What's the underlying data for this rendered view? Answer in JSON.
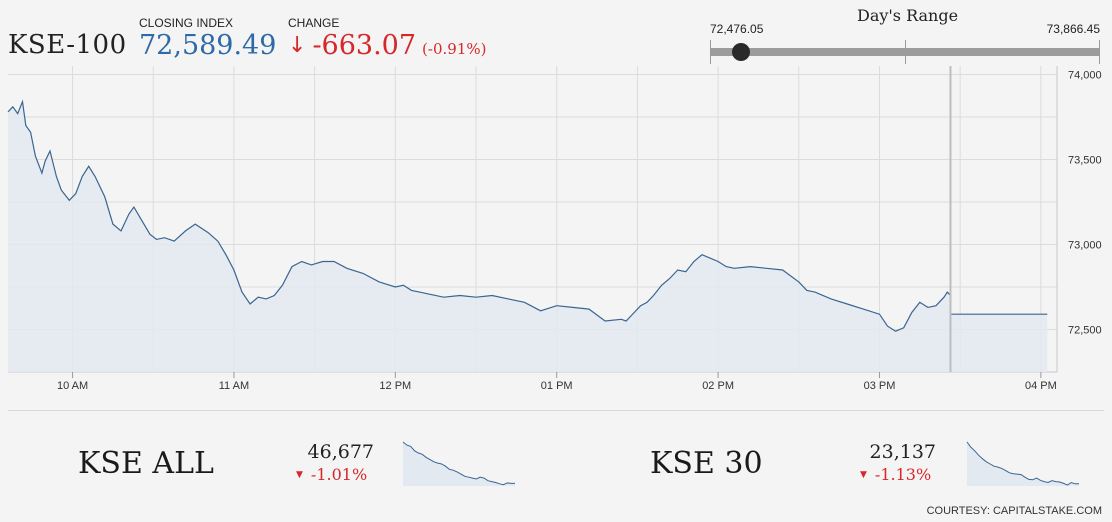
{
  "header": {
    "index_name": "KSE-100",
    "closing_label": "CLOSING INDEX",
    "closing_value": "72,589.49",
    "change_label": "CHANGE",
    "change_arrow": "↓",
    "change_value": "-663.07",
    "change_pct": "(-0.91%)"
  },
  "days_range": {
    "title": "Day's Range",
    "low": "72,476.05",
    "high": "73,866.45",
    "current_position": 0.08
  },
  "colors": {
    "accent_blue": "#2e6aa8",
    "negative_red": "#d6272b",
    "line": "#3a6591",
    "area_fill": "#e3e9f0"
  },
  "chart_data": {
    "type": "area",
    "ylim": [
      72250,
      74050
    ],
    "yticks": [
      72500,
      73000,
      73500,
      74000
    ],
    "ytick_labels": [
      "72,500",
      "73,000",
      "73,500",
      "74,000"
    ],
    "xlim": [
      9.6,
      16.1
    ],
    "xticks": [
      10,
      11,
      12,
      13,
      14,
      15,
      16
    ],
    "xtick_labels": [
      "10 AM",
      "11 AM",
      "12 PM",
      "01 PM",
      "02 PM",
      "03 PM",
      "04 PM"
    ],
    "grid": true,
    "series": [
      {
        "x": [
          9.6,
          9.63,
          9.66,
          9.69,
          9.71,
          9.74,
          9.77,
          9.81,
          9.83,
          9.86,
          9.9,
          9.93,
          9.98,
          10.02,
          10.06,
          10.1,
          10.14,
          10.2,
          10.25,
          10.3,
          10.35,
          10.38,
          10.43,
          10.48,
          10.52,
          10.57,
          10.63,
          10.7,
          10.76,
          10.84,
          10.9,
          10.95,
          11.0,
          11.05,
          11.1,
          11.15,
          11.2,
          11.25,
          11.3,
          11.36,
          11.42,
          11.48,
          11.55,
          11.62,
          11.7,
          11.8,
          11.9,
          12.0,
          12.05,
          12.1,
          12.15,
          12.2,
          12.3,
          12.4,
          12.5,
          12.6,
          12.7,
          12.8,
          12.9,
          13.0,
          13.1,
          13.2,
          13.3,
          13.4,
          13.43,
          13.48,
          13.52,
          13.56,
          13.6,
          13.65,
          13.7,
          13.75,
          13.8,
          13.85,
          13.9,
          13.95,
          14.0,
          14.05,
          14.1,
          14.2,
          14.3,
          14.4,
          14.5,
          14.55,
          14.6,
          14.7,
          14.8,
          14.9,
          15.0,
          15.05,
          15.1,
          15.15,
          15.2,
          15.25,
          15.3,
          15.35,
          15.4,
          15.42,
          15.44,
          15.44,
          15.5,
          15.6,
          15.7,
          15.8,
          15.9,
          16.0,
          16.04
        ],
        "y": [
          73780,
          73810,
          73770,
          73840,
          73700,
          73660,
          73520,
          73420,
          73490,
          73550,
          73400,
          73320,
          73260,
          73300,
          73400,
          73460,
          73400,
          73280,
          73120,
          73080,
          73180,
          73220,
          73140,
          73060,
          73030,
          73040,
          73020,
          73080,
          73120,
          73070,
          73020,
          72940,
          72850,
          72720,
          72650,
          72690,
          72680,
          72700,
          72760,
          72870,
          72900,
          72880,
          72900,
          72900,
          72860,
          72830,
          72780,
          72750,
          72760,
          72730,
          72720,
          72710,
          72690,
          72700,
          72690,
          72700,
          72680,
          72660,
          72610,
          72640,
          72630,
          72620,
          72550,
          72560,
          72550,
          72600,
          72640,
          72660,
          72700,
          72760,
          72800,
          72850,
          72840,
          72900,
          72940,
          72920,
          72900,
          72870,
          72860,
          72870,
          72860,
          72850,
          72780,
          72730,
          72720,
          72680,
          72650,
          72620,
          72590,
          72520,
          72490,
          72510,
          72600,
          72660,
          72630,
          72640,
          72690,
          72720,
          72700,
          72590,
          72590,
          72590,
          72590,
          72590,
          72590,
          72590,
          72590
        ]
      }
    ]
  },
  "tickers": [
    {
      "name": "KSE ALL",
      "value": "46,677",
      "change": "-1.01%",
      "spark": [
        1.0,
        0.93,
        0.9,
        0.8,
        0.75,
        0.72,
        0.65,
        0.6,
        0.55,
        0.52,
        0.5,
        0.45,
        0.38,
        0.36,
        0.32,
        0.27,
        0.22,
        0.2,
        0.18,
        0.16,
        0.2,
        0.18,
        0.12,
        0.1,
        0.08,
        0.05,
        0.03,
        0.07,
        0.06,
        0.06
      ]
    },
    {
      "name": "KSE 30",
      "value": "23,137",
      "change": "-1.13%",
      "spark": [
        1.0,
        0.88,
        0.8,
        0.7,
        0.62,
        0.55,
        0.5,
        0.45,
        0.43,
        0.4,
        0.35,
        0.3,
        0.28,
        0.27,
        0.26,
        0.2,
        0.15,
        0.14,
        0.18,
        0.13,
        0.1,
        0.08,
        0.12,
        0.1,
        0.09,
        0.06,
        0.02,
        0.08,
        0.05,
        0.05
      ]
    }
  ],
  "footer": {
    "courtesy": "COURTESY: CAPITALSTAKE.COM"
  }
}
